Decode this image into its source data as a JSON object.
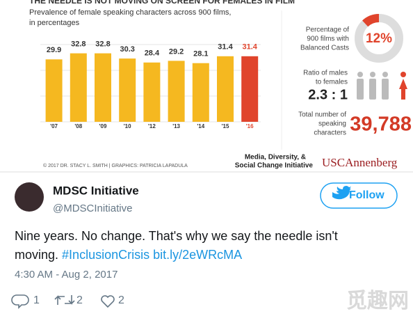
{
  "chart_data": {
    "type": "bar",
    "title": "THE NEEDLE IS NOT MOVING ON SCREEN FOR FEMALES IN FILM",
    "subtitle": [
      "Prevalence of female speaking characters across 900 films,",
      "in percentages"
    ],
    "categories": [
      "'07",
      "'08",
      "'09",
      "'10",
      "'12",
      "'13",
      "'14",
      "'15",
      "'16"
    ],
    "values": [
      29.9,
      32.8,
      32.8,
      30.3,
      28.4,
      29.2,
      28.1,
      31.4,
      31.4
    ],
    "colors": [
      "#f5b820",
      "#f5b820",
      "#f5b820",
      "#f5b820",
      "#f5b820",
      "#f5b820",
      "#f5b820",
      "#f5b820",
      "#e0442c"
    ]
  },
  "stats": {
    "balanced": {
      "label": [
        "Percentage of",
        "900 films with",
        "Balanced Casts"
      ],
      "value": 12,
      "value_label": "12%"
    },
    "ratio": {
      "label": [
        "Ratio of males",
        "to females"
      ],
      "value": "2.3 : 1"
    },
    "total": {
      "label": [
        "Total number of",
        "speaking",
        "characters"
      ],
      "value": "39,788"
    }
  },
  "footer": {
    "credit": "© 2017 DR. STACY L. SMITH | GRAPHICS: PATRICIA LAPADULA",
    "initiative": [
      "Media, Diversity, &",
      "Social Change Initiative"
    ],
    "logo": "USCAnnenberg"
  },
  "tweet": {
    "name": "MDSC Initiative",
    "handle": "@MDSCInitiative",
    "follow": "Follow",
    "text": [
      "Nine years. No change. That's why we say the needle isn't",
      "moving."
    ],
    "hashtag": "#InclusionCrisis",
    "link": "bit.ly/2eWRcMA",
    "time": "4:30 AM - Aug 2, 2017",
    "replies": 1,
    "retweets": 2,
    "likes": 2
  },
  "watermark": "觅趣网"
}
